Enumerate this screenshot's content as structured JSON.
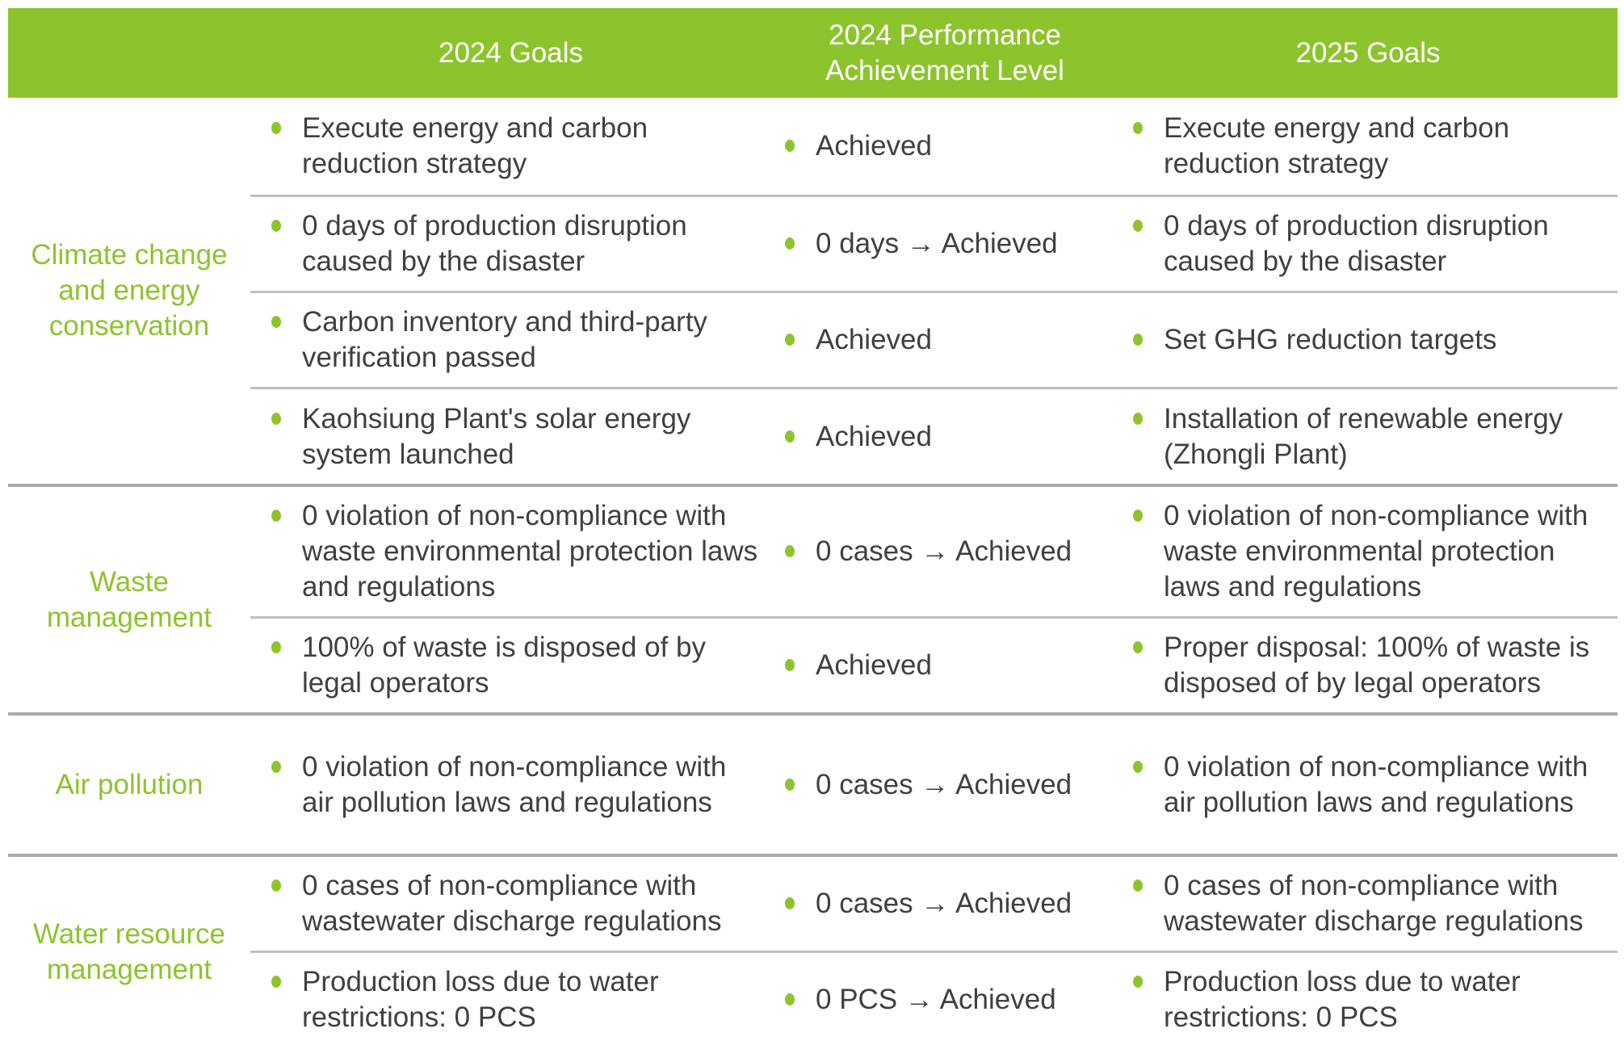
{
  "table": {
    "headers": {
      "category": "",
      "goals_2024": "2024 Goals",
      "performance_2024": "2024 Performance Achievement Level",
      "goals_2025": "2025 Goals"
    },
    "colors": {
      "accent_green": "#8DC42E",
      "header_text": "#FFFFFF",
      "body_text": "#404040",
      "divider_light": "#BFBFBF",
      "divider_dark": "#ABABAB"
    },
    "icons": {
      "bullet": "bullet-dot-icon"
    },
    "groups": [
      {
        "category": "Climate change and energy conservation",
        "rows": [
          {
            "goal_2024": "Execute energy and carbon reduction strategy",
            "performance": "Achieved",
            "goal_2025": "Execute energy and carbon reduction strategy"
          },
          {
            "goal_2024": "0 days of production disruption caused by the disaster",
            "performance": "0 days → Achieved",
            "goal_2025": "0 days of production disruption caused by the disaster"
          },
          {
            "goal_2024": "Carbon inventory and third-party verification passed",
            "performance": "Achieved",
            "goal_2025": "Set GHG reduction targets"
          },
          {
            "goal_2024": "Kaohsiung Plant's solar energy system launched",
            "performance": "Achieved",
            "goal_2025": "Installation of renewable energy (Zhongli Plant)"
          }
        ]
      },
      {
        "category": "Waste management",
        "rows": [
          {
            "goal_2024": "0 violation of non-compliance with waste environmental protection laws and regulations",
            "performance": "0 cases → Achieved",
            "goal_2025": "0 violation of non-compliance with waste environmental protection laws and regulations"
          },
          {
            "goal_2024": "100% of waste is disposed of by legal operators",
            "performance": "Achieved",
            "goal_2025": "Proper disposal: 100% of waste is disposed of by legal operators"
          }
        ]
      },
      {
        "category": "Air pollution",
        "rows": [
          {
            "goal_2024": "0 violation of non-compliance with air pollution laws and regulations",
            "performance": "0 cases → Achieved",
            "goal_2025": "0 violation of non-compliance with air pollution laws and regulations"
          }
        ]
      },
      {
        "category": "Water resource management",
        "rows": [
          {
            "goal_2024": "0 cases of non-compliance with wastewater discharge regulations",
            "performance": "0 cases → Achieved",
            "goal_2025": "0 cases of non-compliance with wastewater discharge regulations"
          },
          {
            "goal_2024": "Production loss due to water restrictions: 0 PCS",
            "performance": "0 PCS → Achieved",
            "goal_2025": "Production loss due to water restrictions: 0 PCS"
          }
        ]
      }
    ]
  }
}
